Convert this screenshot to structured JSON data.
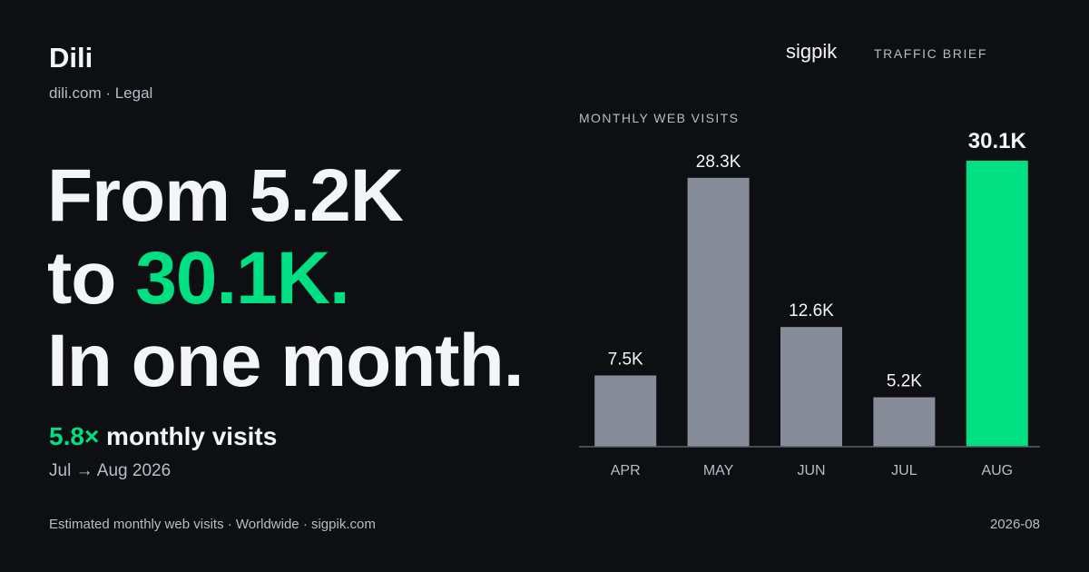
{
  "header": {
    "brand": "Dili",
    "subtitle": "dili.com · Legal",
    "publisher": "sigpik",
    "report_label": "TRAFFIC BRIEF"
  },
  "headline": {
    "line1": "From 5.2K",
    "line2_prefix": "to ",
    "line2_highlight": "30.1K.",
    "line3": "In one month."
  },
  "metric": {
    "multiplier": "5.8×",
    "label": " monthly visits",
    "period": "Jul → Aug 2026"
  },
  "footer": {
    "source": "Estimated monthly web visits · Worldwide · sigpik.com",
    "date": "2026-08"
  },
  "colors": {
    "background": "#0d0f13",
    "accent": "#00e082",
    "bar": "#878c99",
    "muted_text": "#b7bcc6"
  },
  "chart_data": {
    "type": "bar",
    "title": "MONTHLY WEB VISITS",
    "categories": [
      "APR",
      "MAY",
      "JUN",
      "JUL",
      "AUG"
    ],
    "values": [
      7500,
      28300,
      12600,
      5200,
      30100
    ],
    "value_labels": [
      "7.5K",
      "28.3K",
      "12.6K",
      "5.2K",
      "30.1K"
    ],
    "highlight_index": 4,
    "ylim": [
      0,
      30100
    ],
    "grid": false,
    "legend": "none"
  }
}
